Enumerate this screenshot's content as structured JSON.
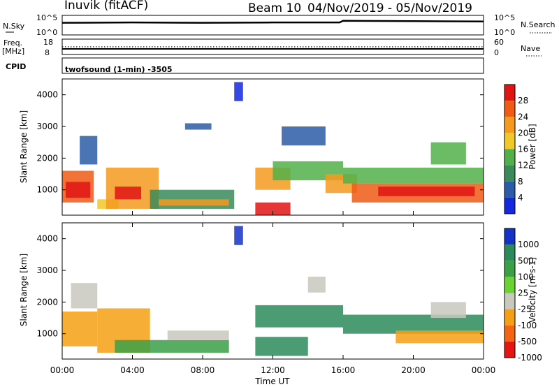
{
  "header": {
    "station": "Inuvik (fitACF)",
    "beam": "Beam 10",
    "date_range": "04/Nov/2019 - 05/Nov/2019"
  },
  "top_panels": {
    "nsky_label": "N.Sky",
    "nsky_ticks": [
      "10^5",
      "10^0"
    ],
    "nsearch_label": "N.Search",
    "nsearch_ticks": [
      "10^5",
      "10^0"
    ],
    "freq_label_1": "Freq.",
    "freq_label_2": "[MHz]",
    "freq_ticks": [
      "18",
      "8"
    ],
    "nave_label": "Nave",
    "nave_ticks": [
      "60",
      "0"
    ],
    "cpid_label": "CPID",
    "cpid_text": "twofsound (1-min) -3505"
  },
  "chart_data": [
    {
      "type": "heatmap",
      "name": "power",
      "ylabel": "Slant Range [km]",
      "yticks": [
        "1000",
        "2000",
        "3000",
        "4000"
      ],
      "ylim": [
        200,
        4500
      ],
      "colorbar_label": "Power [dB]",
      "colorbar_ticks": [
        "4",
        "8",
        "12",
        "16",
        "20",
        "24",
        "28"
      ],
      "colorbar_levels": [
        0,
        4,
        8,
        12,
        16,
        20,
        24,
        28,
        32
      ],
      "colors": [
        "#1428e0",
        "#2c5ca8",
        "#3a8a5a",
        "#52b04a",
        "#f0c828",
        "#f59a1e",
        "#f05a14",
        "#e01414"
      ],
      "regions": [
        {
          "t0": 0.0,
          "t1": 1.8,
          "r0": 600,
          "r1": 1600,
          "level": 6
        },
        {
          "t0": 0.2,
          "t1": 1.6,
          "r0": 750,
          "r1": 1250,
          "level": 7
        },
        {
          "t0": 1.0,
          "t1": 2.0,
          "r0": 1800,
          "r1": 2700,
          "level": 1
        },
        {
          "t0": 2.0,
          "t1": 3.2,
          "r0": 400,
          "r1": 700,
          "level": 4
        },
        {
          "t0": 2.5,
          "t1": 5.5,
          "r0": 400,
          "r1": 1700,
          "level": 5
        },
        {
          "t0": 3.0,
          "t1": 4.5,
          "r0": 700,
          "r1": 1100,
          "level": 7
        },
        {
          "t0": 5.0,
          "t1": 9.8,
          "r0": 400,
          "r1": 1000,
          "level": 2
        },
        {
          "t0": 5.5,
          "t1": 9.5,
          "r0": 500,
          "r1": 700,
          "level": 5
        },
        {
          "t0": 7.0,
          "t1": 8.5,
          "r0": 2900,
          "r1": 3100,
          "level": 1
        },
        {
          "t0": 9.8,
          "t1": 10.3,
          "r0": 3800,
          "r1": 4400,
          "level": 0
        },
        {
          "t0": 11.0,
          "t1": 13.0,
          "r0": 1000,
          "r1": 1700,
          "level": 5
        },
        {
          "t0": 11.0,
          "t1": 13.0,
          "r0": 200,
          "r1": 600,
          "level": 7
        },
        {
          "t0": 12.0,
          "t1": 16.0,
          "r0": 1300,
          "r1": 1900,
          "level": 3
        },
        {
          "t0": 12.5,
          "t1": 15.0,
          "r0": 2400,
          "r1": 3000,
          "level": 1
        },
        {
          "t0": 15.0,
          "t1": 16.8,
          "r0": 900,
          "r1": 1500,
          "level": 5
        },
        {
          "t0": 16.0,
          "t1": 24.0,
          "r0": 1200,
          "r1": 1700,
          "level": 3
        },
        {
          "t0": 16.5,
          "t1": 24.0,
          "r0": 600,
          "r1": 1200,
          "level": 6
        },
        {
          "t0": 18.0,
          "t1": 23.5,
          "r0": 800,
          "r1": 1100,
          "level": 7
        },
        {
          "t0": 21.0,
          "t1": 23.0,
          "r0": 1800,
          "r1": 2500,
          "level": 3
        }
      ]
    },
    {
      "type": "heatmap",
      "name": "velocity",
      "ylabel": "Slant Range [km]",
      "yticks": [
        "1000",
        "2000",
        "3000",
        "4000"
      ],
      "ylim": [
        200,
        4500
      ],
      "colorbar_label": "Velocity [m s-1]",
      "colorbar_ticks": [
        "1000",
        "500",
        "100",
        "25",
        "-25",
        "-100",
        "-500",
        "-1000"
      ],
      "colorbar_levels": [
        1000,
        500,
        100,
        25,
        -25,
        -100,
        -500,
        -1000
      ],
      "colors": [
        "#1432c8",
        "#2c8a5a",
        "#3aa046",
        "#6ad232",
        "#c8c8be",
        "#f5a014",
        "#f56414",
        "#e61414"
      ],
      "regions": [
        {
          "t0": 0.0,
          "t1": 2.0,
          "r0": 600,
          "r1": 1700,
          "level": 5
        },
        {
          "t0": 0.5,
          "t1": 2.0,
          "r0": 1800,
          "r1": 2600,
          "level": 4
        },
        {
          "t0": 2.0,
          "t1": 5.0,
          "r0": 400,
          "r1": 1800,
          "level": 5
        },
        {
          "t0": 3.0,
          "t1": 9.5,
          "r0": 400,
          "r1": 800,
          "level": 2
        },
        {
          "t0": 6.0,
          "t1": 9.5,
          "r0": 800,
          "r1": 1100,
          "level": 4
        },
        {
          "t0": 9.8,
          "t1": 10.3,
          "r0": 3800,
          "r1": 4400,
          "level": 0
        },
        {
          "t0": 11.0,
          "t1": 16.0,
          "r0": 1200,
          "r1": 1900,
          "level": 1
        },
        {
          "t0": 11.0,
          "t1": 14.0,
          "r0": 300,
          "r1": 900,
          "level": 1
        },
        {
          "t0": 14.0,
          "t1": 15.0,
          "r0": 2300,
          "r1": 2800,
          "level": 4
        },
        {
          "t0": 16.0,
          "t1": 24.0,
          "r0": 1000,
          "r1": 1600,
          "level": 1
        },
        {
          "t0": 19.0,
          "t1": 24.0,
          "r0": 700,
          "r1": 1100,
          "level": 5
        },
        {
          "t0": 21.0,
          "t1": 23.0,
          "r0": 1500,
          "r1": 2000,
          "level": 4
        }
      ]
    }
  ],
  "x_axis": {
    "ticks": [
      "00:00",
      "04:00",
      "08:00",
      "12:00",
      "16:00",
      "20:00",
      "00:00"
    ],
    "tick_hours": [
      0,
      4,
      8,
      12,
      16,
      20,
      24
    ],
    "label": "Time UT"
  },
  "nsky_series": [
    {
      "t": 0,
      "v": 3.2
    },
    {
      "t": 4,
      "v": 3.3
    },
    {
      "t": 8,
      "v": 3.2
    },
    {
      "t": 12,
      "v": 3.3
    },
    {
      "t": 15.8,
      "v": 3.3
    },
    {
      "t": 16,
      "v": 3.8
    },
    {
      "t": 20,
      "v": 3.7
    },
    {
      "t": 24,
      "v": 3.6
    }
  ],
  "freq_series": [
    {
      "t": 0,
      "v": 11.0
    },
    {
      "t": 24,
      "v": 11.0
    }
  ],
  "nave_series": [
    {
      "t": 0,
      "v": 27
    },
    {
      "t": 24,
      "v": 27
    }
  ]
}
